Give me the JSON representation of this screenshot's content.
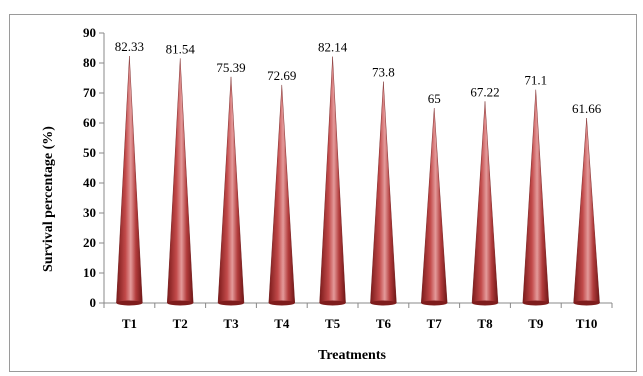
{
  "chart_data": {
    "type": "bar",
    "bar_shape": "cone",
    "categories": [
      "T1",
      "T2",
      "T3",
      "T4",
      "T5",
      "T6",
      "T7",
      "T8",
      "T9",
      "T10"
    ],
    "values": [
      82.33,
      81.54,
      75.39,
      72.69,
      82.14,
      73.8,
      65,
      67.22,
      71.1,
      61.66
    ],
    "value_labels": [
      "82.33",
      "81.54",
      "75.39",
      "72.69",
      "82.14",
      "73.8",
      "65",
      "67.22",
      "71.1",
      "61.66"
    ],
    "ylim": [
      0,
      90
    ],
    "yticks": [
      0,
      10,
      20,
      30,
      40,
      50,
      60,
      70,
      80,
      90
    ],
    "xlabel": "Treatments",
    "ylabel": "Survival percentage (%)",
    "grid": false,
    "legend": "none",
    "colors": {
      "bar_dark": "#8c2222",
      "bar_mid": "#c04848",
      "bar_light": "#e8a0a0",
      "axis": "#888888"
    }
  }
}
